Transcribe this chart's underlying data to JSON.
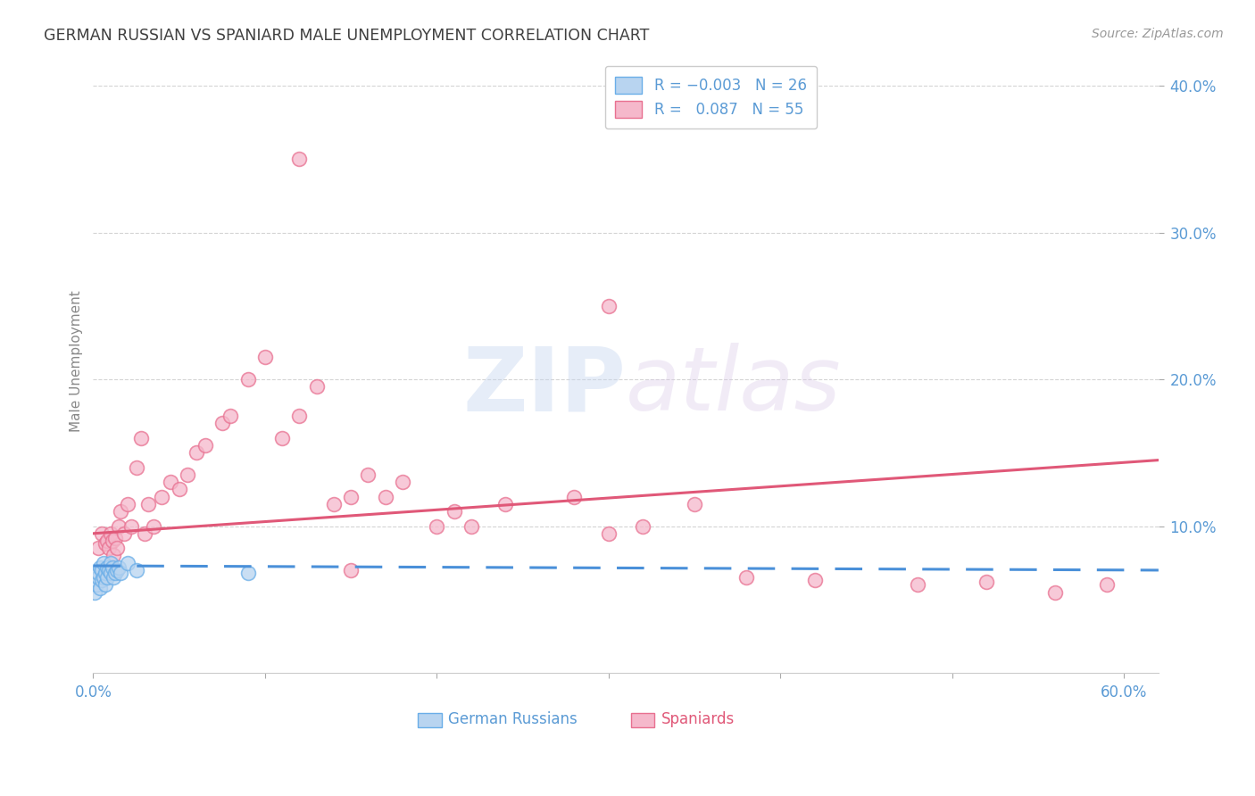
{
  "title": "GERMAN RUSSIAN VS SPANIARD MALE UNEMPLOYMENT CORRELATION CHART",
  "source": "Source: ZipAtlas.com",
  "ylabel": "Male Unemployment",
  "watermark_zip": "ZIP",
  "watermark_atlas": "atlas",
  "xlim": [
    0.0,
    0.62
  ],
  "ylim": [
    0.0,
    0.425
  ],
  "yticks": [
    0.1,
    0.2,
    0.3,
    0.4
  ],
  "ytick_labels": [
    "10.0%",
    "20.0%",
    "30.0%",
    "40.0%"
  ],
  "blue_color": "#b8d4f0",
  "pink_color": "#f5b8cb",
  "blue_edge_color": "#6aaee8",
  "pink_edge_color": "#e87090",
  "blue_line_color": "#4a90d9",
  "pink_line_color": "#e05878",
  "grid_color": "#d0d0d0",
  "title_color": "#404040",
  "axis_label_color": "#5b9bd5",
  "gr_x": [
    0.001,
    0.002,
    0.003,
    0.003,
    0.004,
    0.004,
    0.005,
    0.005,
    0.006,
    0.006,
    0.007,
    0.007,
    0.008,
    0.008,
    0.009,
    0.01,
    0.01,
    0.011,
    0.012,
    0.013,
    0.014,
    0.015,
    0.016,
    0.02,
    0.025,
    0.09
  ],
  "gr_y": [
    0.055,
    0.06,
    0.065,
    0.068,
    0.058,
    0.072,
    0.063,
    0.07,
    0.065,
    0.075,
    0.06,
    0.068,
    0.072,
    0.065,
    0.07,
    0.068,
    0.075,
    0.072,
    0.065,
    0.068,
    0.07,
    0.072,
    0.068,
    0.075,
    0.07,
    0.068
  ],
  "sp_x": [
    0.003,
    0.005,
    0.007,
    0.008,
    0.009,
    0.01,
    0.011,
    0.012,
    0.013,
    0.014,
    0.015,
    0.016,
    0.018,
    0.02,
    0.022,
    0.025,
    0.028,
    0.03,
    0.032,
    0.035,
    0.04,
    0.045,
    0.05,
    0.055,
    0.06,
    0.065,
    0.075,
    0.08,
    0.09,
    0.1,
    0.11,
    0.12,
    0.13,
    0.14,
    0.15,
    0.16,
    0.17,
    0.18,
    0.2,
    0.21,
    0.22,
    0.24,
    0.28,
    0.3,
    0.32,
    0.35,
    0.38,
    0.42,
    0.48,
    0.52,
    0.56,
    0.59,
    0.12,
    0.15,
    0.3
  ],
  "sp_y": [
    0.085,
    0.095,
    0.088,
    0.09,
    0.085,
    0.095,
    0.09,
    0.08,
    0.092,
    0.085,
    0.1,
    0.11,
    0.095,
    0.115,
    0.1,
    0.14,
    0.16,
    0.095,
    0.115,
    0.1,
    0.12,
    0.13,
    0.125,
    0.135,
    0.15,
    0.155,
    0.17,
    0.175,
    0.2,
    0.215,
    0.16,
    0.175,
    0.195,
    0.115,
    0.12,
    0.135,
    0.12,
    0.13,
    0.1,
    0.11,
    0.1,
    0.115,
    0.12,
    0.095,
    0.1,
    0.115,
    0.065,
    0.063,
    0.06,
    0.062,
    0.055,
    0.06,
    0.35,
    0.07,
    0.25
  ],
  "blue_line_x": [
    0.0,
    0.62
  ],
  "blue_line_y": [
    0.073,
    0.07
  ],
  "pink_line_x": [
    0.0,
    0.62
  ],
  "pink_line_y": [
    0.095,
    0.145
  ]
}
